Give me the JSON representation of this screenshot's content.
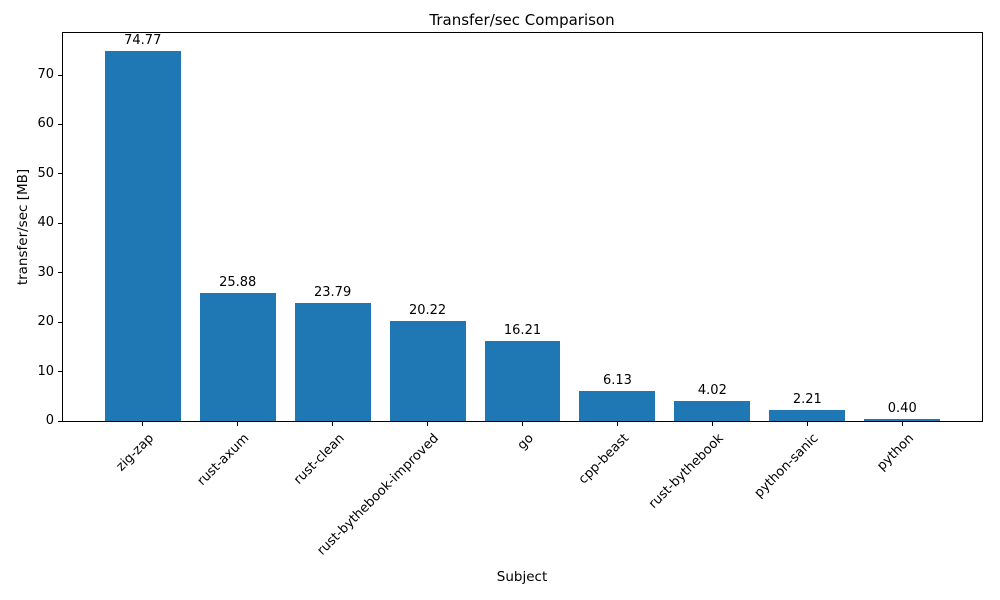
{
  "chart_data": {
    "type": "bar",
    "title": "Transfer/sec Comparison",
    "xlabel": "Subject",
    "ylabel": "transfer/sec [MB]",
    "categories": [
      "zig-zap",
      "rust-axum",
      "rust-clean",
      "rust-bythebook-improved",
      "go",
      "cpp-beast",
      "rust-bythebook",
      "python-sanic",
      "python"
    ],
    "values": [
      74.77,
      25.88,
      23.79,
      20.22,
      16.21,
      6.13,
      4.02,
      2.21,
      0.4
    ],
    "value_labels": [
      "74.77",
      "25.88",
      "23.79",
      "20.22",
      "16.21",
      "6.13",
      "4.02",
      "2.21",
      "0.40"
    ],
    "bar_color": "#1f77b4",
    "text_color": "#000000",
    "ylim": [
      0,
      78.5
    ],
    "yticks": [
      0,
      10,
      20,
      30,
      40,
      50,
      60,
      70
    ],
    "grid": false,
    "legend": null,
    "x_tick_rotation_deg": 45
  }
}
